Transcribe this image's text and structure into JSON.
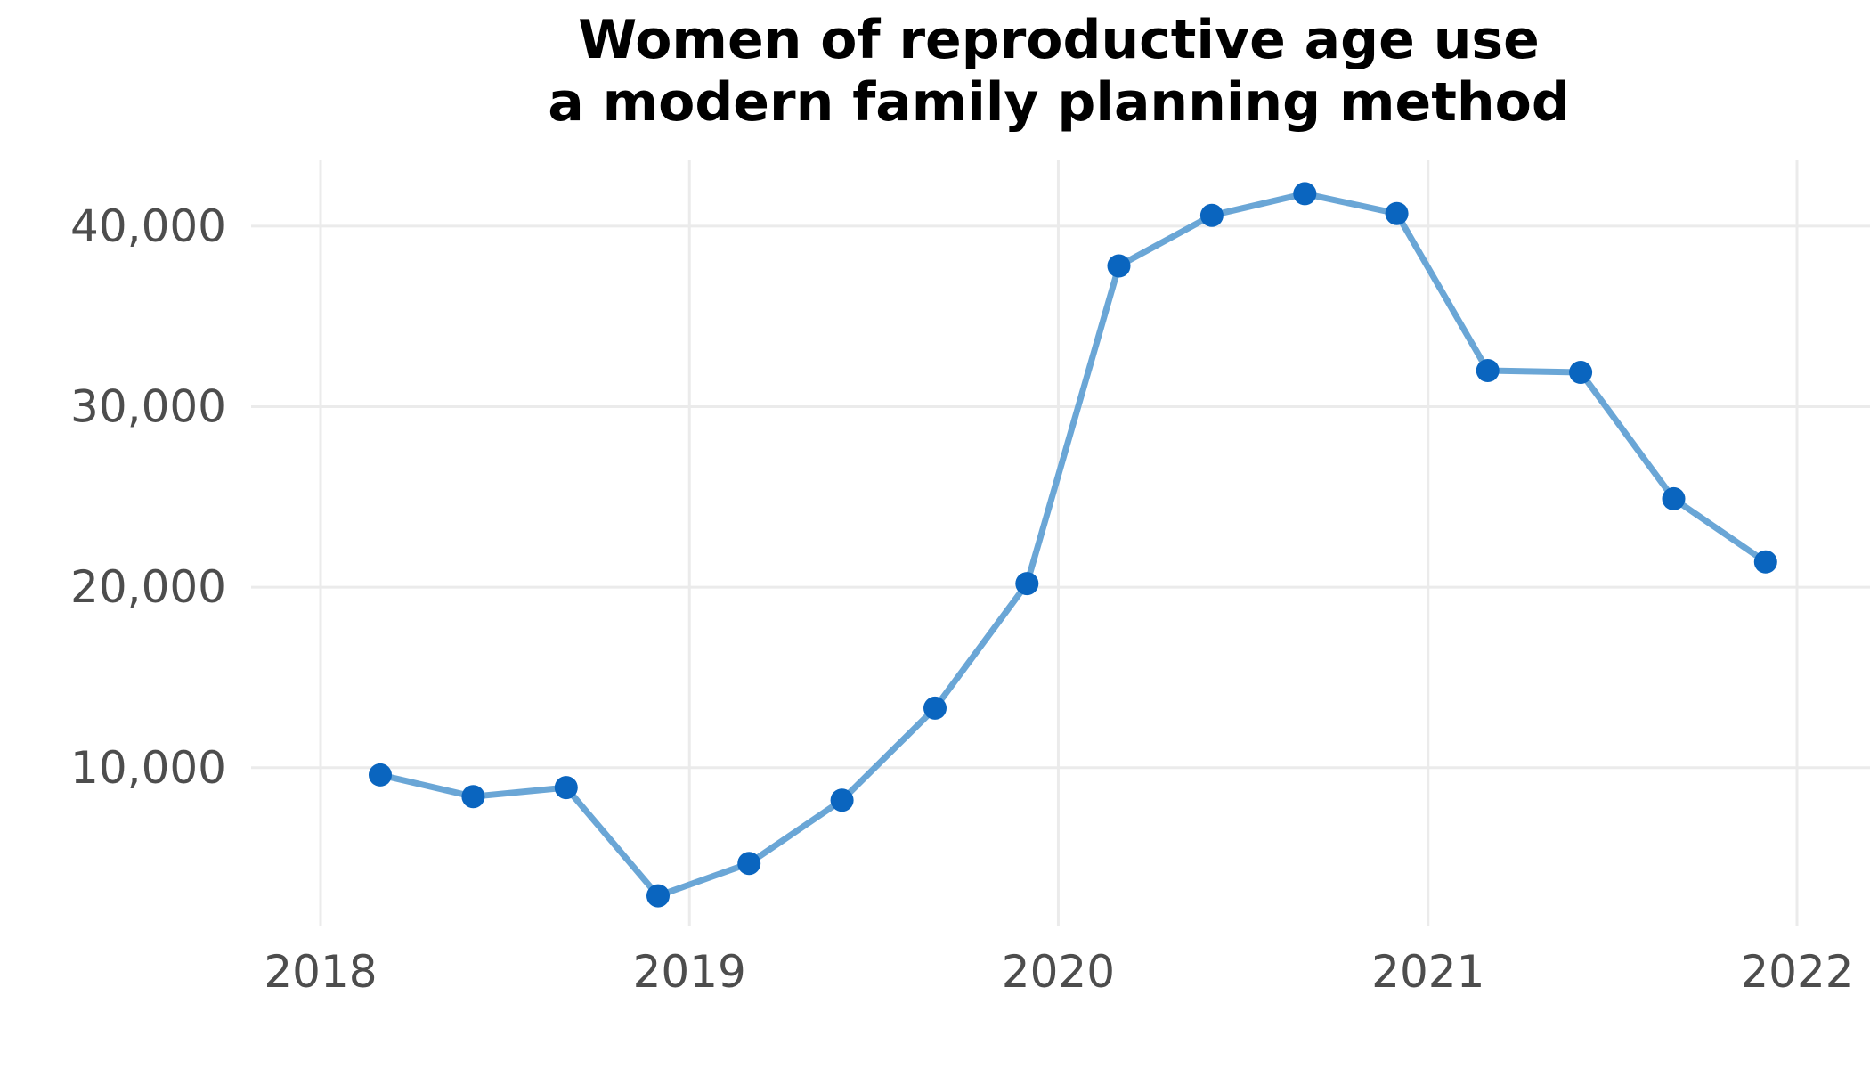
{
  "chart_data": {
    "type": "line",
    "title_lines": [
      "Women of reproductive age use",
      "a modern family planning method"
    ],
    "xlabel": "",
    "ylabel": "",
    "x_axis": {
      "type": "date",
      "range": [
        "2018-01-01",
        "2022-01-01"
      ],
      "ticks": [
        {
          "date": "2018-01-01",
          "label": "2018"
        },
        {
          "date": "2019-01-01",
          "label": "2019"
        },
        {
          "date": "2020-01-01",
          "label": "2020"
        },
        {
          "date": "2021-01-01",
          "label": "2021"
        },
        {
          "date": "2022-01-01",
          "label": "2022"
        }
      ]
    },
    "y_axis": {
      "range": [
        1500,
        43500
      ],
      "ticks": [
        {
          "value": 10000,
          "label": "10,000"
        },
        {
          "value": 20000,
          "label": "20,000"
        },
        {
          "value": 30000,
          "label": "30,000"
        },
        {
          "value": 40000,
          "label": "40,000"
        }
      ]
    },
    "grid": true,
    "legend": "none",
    "series": [
      {
        "line_color": "#6aa6d6",
        "point_color": "#0a65bf",
        "points": [
          {
            "x": "2018-03-01",
            "y": 9600
          },
          {
            "x": "2018-06-01",
            "y": 8400
          },
          {
            "x": "2018-09-01",
            "y": 8900
          },
          {
            "x": "2018-12-01",
            "y": 2900
          },
          {
            "x": "2019-03-01",
            "y": 4700
          },
          {
            "x": "2019-06-01",
            "y": 8200
          },
          {
            "x": "2019-09-01",
            "y": 13300
          },
          {
            "x": "2019-12-01",
            "y": 20200
          },
          {
            "x": "2020-03-01",
            "y": 37800
          },
          {
            "x": "2020-06-01",
            "y": 40600
          },
          {
            "x": "2020-09-01",
            "y": 41800
          },
          {
            "x": "2020-12-01",
            "y": 40700
          },
          {
            "x": "2021-03-01",
            "y": 32000
          },
          {
            "x": "2021-06-01",
            "y": 31900
          },
          {
            "x": "2021-09-01",
            "y": 24900
          },
          {
            "x": "2021-12-01",
            "y": 21400
          }
        ]
      }
    ]
  }
}
